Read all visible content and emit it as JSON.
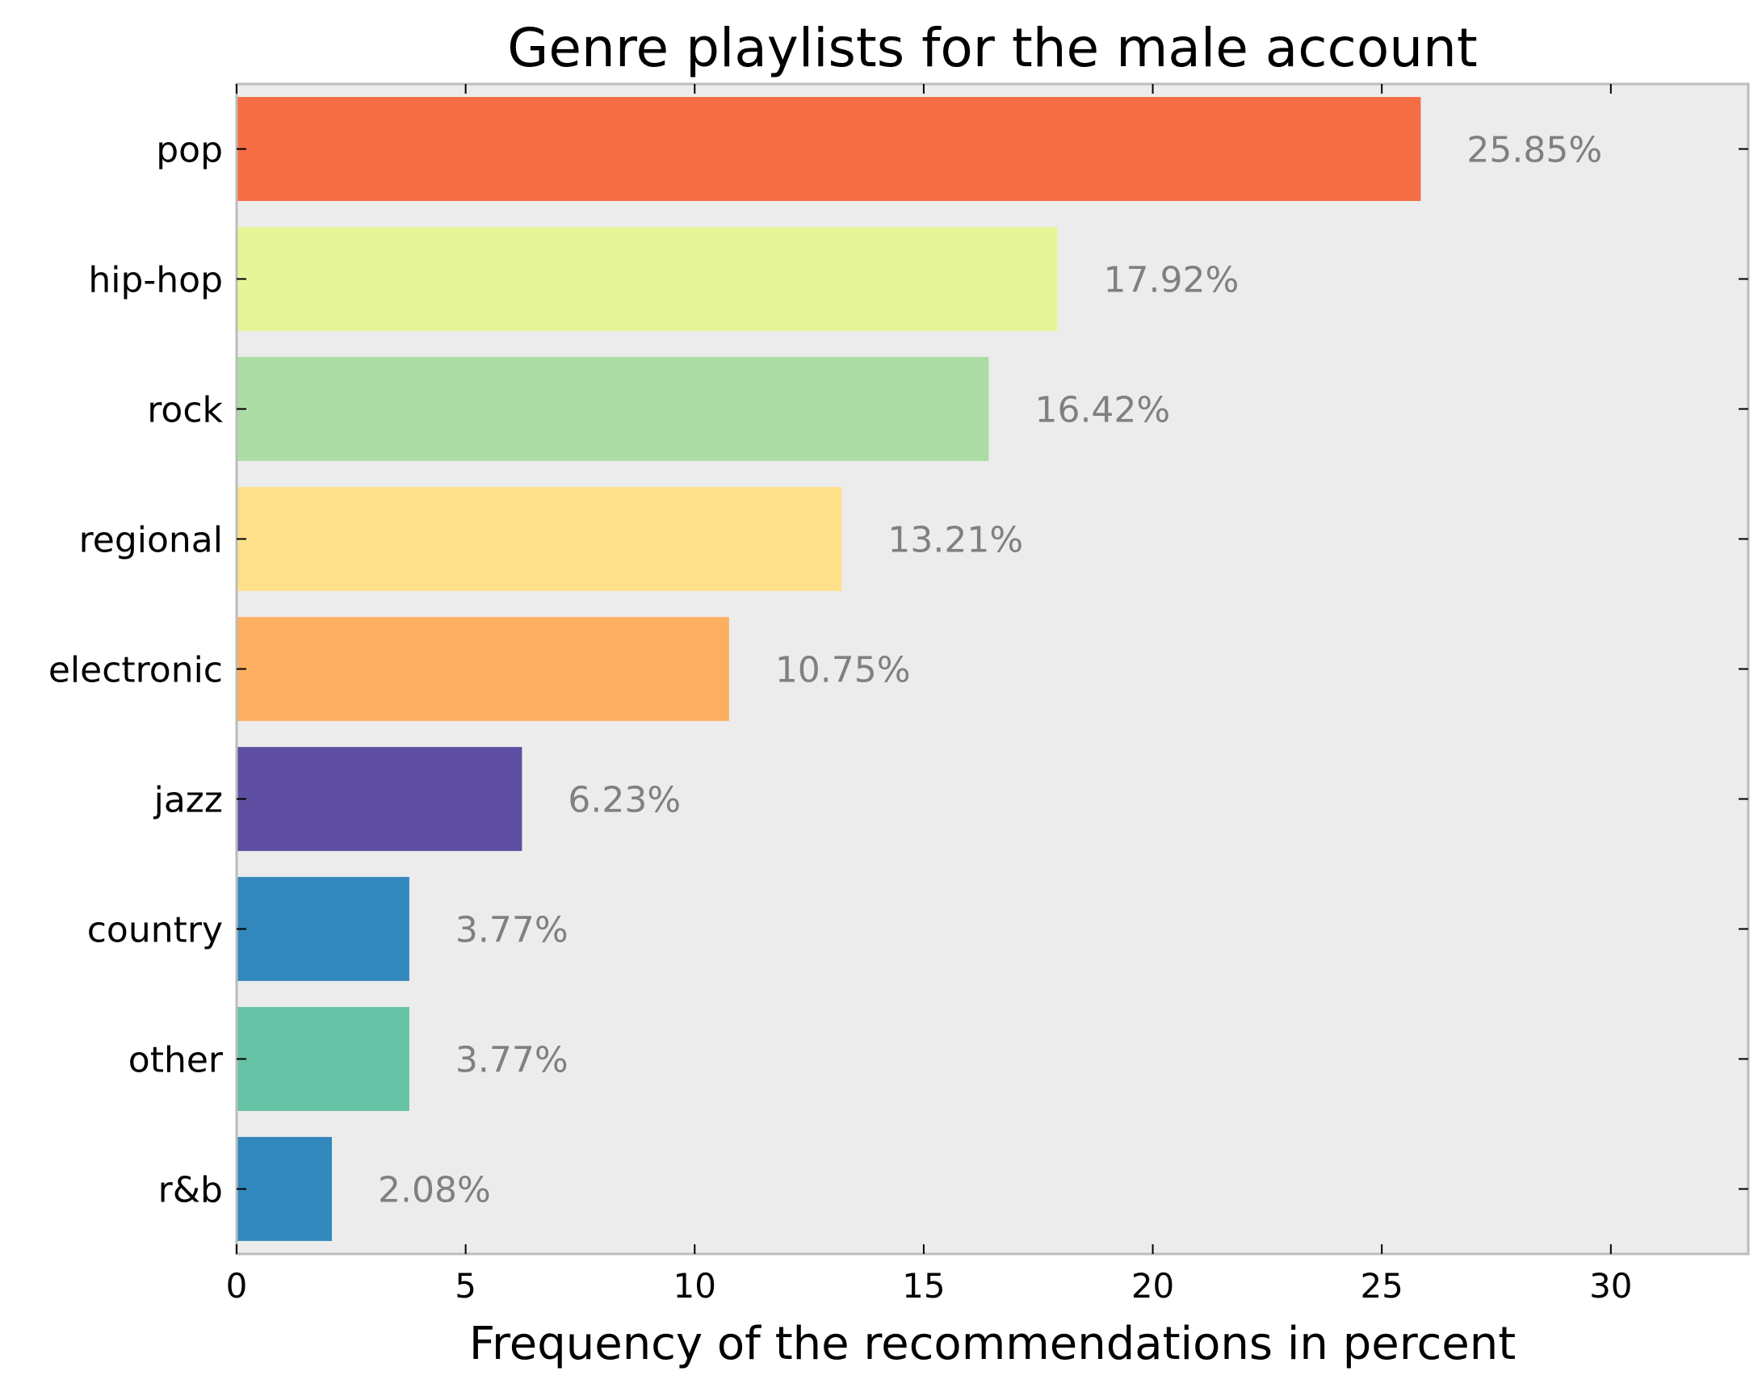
{
  "chart_data": {
    "type": "bar",
    "orientation": "horizontal",
    "title": "Genre playlists for the male account",
    "xlabel": "Frequency of the recommendations in percent",
    "ylabel": "",
    "xlim": [
      0,
      33
    ],
    "xticks": [
      0,
      5,
      10,
      15,
      20,
      25,
      30
    ],
    "grid": false,
    "categories": [
      "pop",
      "hip-hop",
      "rock",
      "regional",
      "electronic",
      "jazz",
      "country",
      "other",
      "r&b"
    ],
    "values": [
      25.85,
      17.92,
      16.42,
      13.21,
      10.75,
      6.23,
      3.77,
      3.77,
      2.08
    ],
    "value_labels": [
      "25.85%",
      "17.92%",
      "16.42%",
      "13.21%",
      "10.75%",
      "6.23%",
      "3.77%",
      "3.77%",
      "2.08%"
    ],
    "colors": [
      "#f46d43",
      "#e6f598",
      "#abdda4",
      "#fee08b",
      "#fdae61",
      "#5e4fa2",
      "#3288bd",
      "#66c2a5",
      "#3288bd"
    ],
    "plot_background": "#ececec",
    "frame_color": "#bcbcbc",
    "value_label_color": "#808080"
  }
}
